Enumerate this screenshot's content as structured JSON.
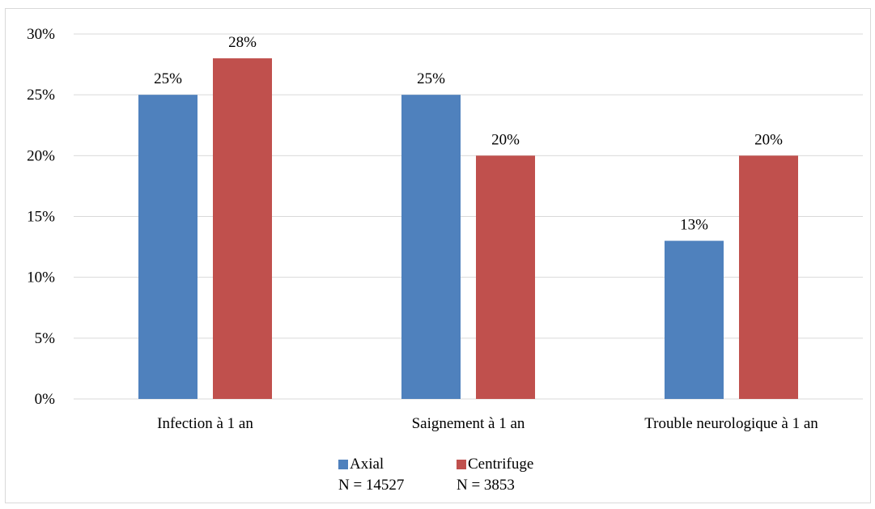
{
  "chart_data": {
    "type": "bar",
    "title": "",
    "xlabel": "",
    "ylabel": "",
    "categories": [
      "Infection à 1 an",
      "Saignement à 1 an",
      "Trouble neurologique à 1 an"
    ],
    "series": [
      {
        "name": "Axial\nN = 14527",
        "values": [
          25,
          25,
          13
        ],
        "labels": [
          "25%",
          "25%",
          "13%"
        ],
        "color": "#4f81bd"
      },
      {
        "name": "Centrifuge\nN = 3853",
        "values": [
          28,
          20,
          20
        ],
        "labels": [
          "28%",
          "20%",
          "20%"
        ],
        "color": "#c0504d"
      }
    ],
    "ylim": [
      0,
      30
    ],
    "yticks": [
      0,
      5,
      10,
      15,
      20,
      25,
      30
    ],
    "ytick_labels": [
      "0%",
      "5%",
      "10%",
      "15%",
      "20%",
      "25%",
      "30%"
    ],
    "grid": true,
    "gridline_color": "#d9d9d9",
    "legend_position": "bottom"
  }
}
